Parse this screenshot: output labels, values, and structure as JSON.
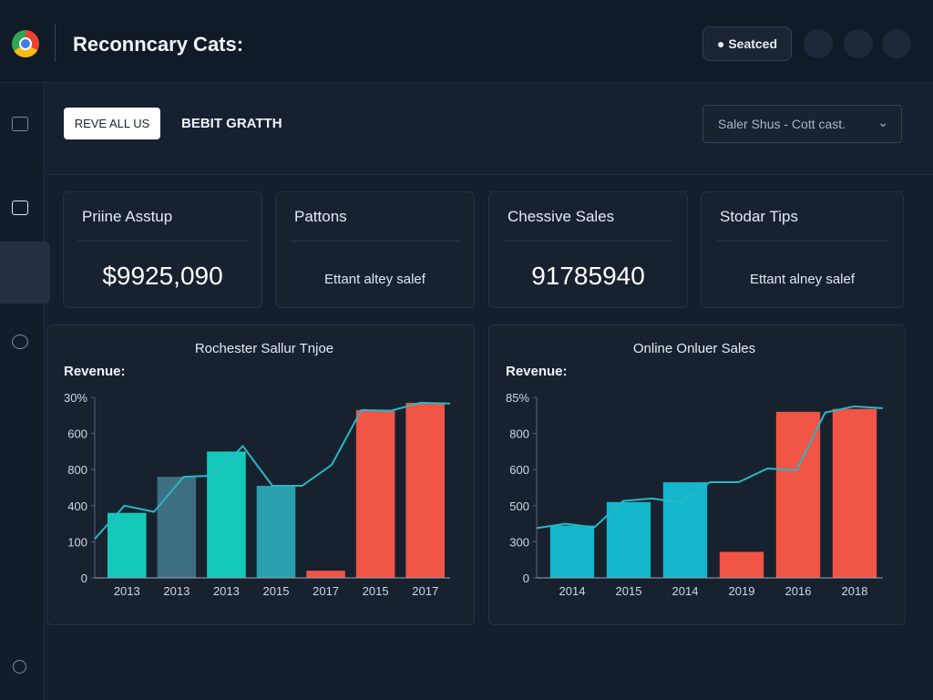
{
  "header": {
    "title": "Reconncary Cats:",
    "button": "Seatced"
  },
  "toolbar": {
    "button": "REVE ALL US",
    "label": "BEBIT GRATTH",
    "select": "Saler Shus - Cott cast."
  },
  "cards": [
    {
      "title": "Priine Asstup",
      "value": "$9925,090"
    },
    {
      "title": "Pattons",
      "note": "Ettant altey salef"
    },
    {
      "title": "Chessive Sales",
      "value": "91785940"
    },
    {
      "title": "Stodar Tips",
      "note": "Ettant alney salef"
    }
  ],
  "charts": [
    {
      "type": "bar",
      "title": "Rochester Sallur Tnjoe",
      "y_label": "Revenue:",
      "categories": [
        "2013",
        "2013",
        "2013",
        "2015",
        "2017",
        "2015",
        "2017"
      ],
      "values": [
        1.8,
        2.8,
        3.5,
        2.55,
        0.2,
        4.65,
        4.85
      ],
      "colors": [
        "#14c9b9",
        "#3e6e82",
        "#14c9b9",
        "#2a9fae",
        "#f05545",
        "#f05545",
        "#f05545"
      ],
      "line_values": [
        1.08,
        2.0,
        1.83,
        2.8,
        2.83,
        3.65,
        2.55,
        2.55,
        3.13,
        4.65,
        4.63,
        4.85,
        4.83
      ],
      "line_color": "#27b8c8",
      "ylim": [
        0,
        5
      ],
      "yticks": [
        {
          "value": 0,
          "label": "0"
        },
        {
          "value": 1,
          "label": "100"
        },
        {
          "value": 2,
          "label": "400"
        },
        {
          "value": 3,
          "label": "800"
        },
        {
          "value": 4,
          "label": "600"
        },
        {
          "value": 5,
          "label": "30%"
        }
      ]
    },
    {
      "type": "bar",
      "title": "Online Onluer Sales",
      "y_label": "Revenue:",
      "categories": [
        "2014",
        "2015",
        "2014",
        "2019",
        "2016",
        "2018"
      ],
      "values": [
        1.45,
        2.1,
        2.65,
        0.72,
        4.6,
        4.68
      ],
      "colors": [
        "#13b6ca",
        "#13b6ca",
        "#13b6ca",
        "#f05545",
        "#f05545",
        "#f05545"
      ],
      "line_values": [
        1.38,
        1.5,
        1.4,
        2.13,
        2.2,
        2.08,
        2.65,
        2.65,
        3.03,
        2.98,
        4.58,
        4.75,
        4.7
      ],
      "line_color": "#27b8c8",
      "ylim": [
        0,
        5
      ],
      "yticks": [
        {
          "value": 0,
          "label": "0"
        },
        {
          "value": 1,
          "label": "300"
        },
        {
          "value": 2,
          "label": "500"
        },
        {
          "value": 3,
          "label": "600"
        },
        {
          "value": 4,
          "label": "800"
        },
        {
          "value": 5,
          "label": "85%"
        }
      ]
    }
  ]
}
